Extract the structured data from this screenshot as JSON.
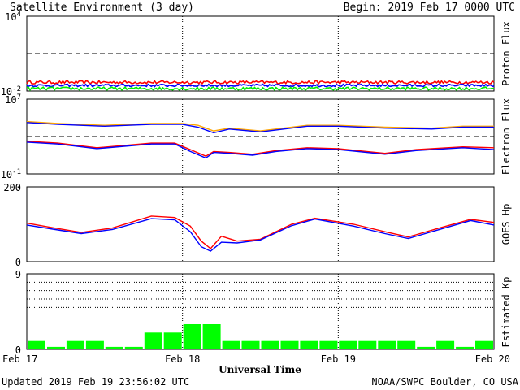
{
  "header": {
    "title": "Satellite Environment (3 day)",
    "begin": "Begin:  2019 Feb 17 0000 UTC"
  },
  "footer": {
    "updated": "Updated 2019 Feb 19 23:56:02 UTC",
    "credit": "NOAA/SWPC Boulder, CO USA",
    "xtitle": "Universal Time"
  },
  "x_axis": {
    "ticks": [
      {
        "day": 0,
        "label": "Feb 17"
      },
      {
        "day": 1,
        "label": "Feb 18"
      },
      {
        "day": 2,
        "label": "Feb 19"
      },
      {
        "day": 3,
        "label": "Feb 20"
      }
    ]
  },
  "colors": {
    "red": "#ff0000",
    "blue": "#0000ff",
    "green": "#00ee00",
    "orange": "#ffa500",
    "kp_bar": "#00ff00"
  },
  "chart_data": [
    {
      "type": "line",
      "panel": "proton",
      "ylabel": "Proton Flux",
      "yscale": "log",
      "ylim_exp": [
        -2,
        4
      ],
      "ytick_labels": [
        {
          "exp": 4,
          "base": "10",
          "sup": "4"
        },
        {
          "exp": -2,
          "base": "10",
          "sup": "-2"
        }
      ],
      "threshold_exp": 1,
      "series": [
        {
          "color": "red",
          "level_exp": -1.3,
          "noise": 0.12
        },
        {
          "color": "blue",
          "level_exp": -1.55,
          "noise": 0.1
        },
        {
          "color": "green",
          "level_exp": -1.8,
          "noise": 0.12
        }
      ]
    },
    {
      "type": "line",
      "panel": "electron",
      "ylabel": "Electron Flux",
      "yscale": "log",
      "ylim_exp": [
        -1,
        7
      ],
      "ytick_labels": [
        {
          "exp": 7,
          "base": "10",
          "sup": "7"
        },
        {
          "exp": -1,
          "base": "10",
          "sup": "-1"
        }
      ],
      "threshold_exp": 3,
      "series": [
        {
          "color": "orange",
          "x": [
            0,
            0.2,
            0.5,
            0.8,
            1.0,
            1.1,
            1.2,
            1.3,
            1.5,
            1.8,
            2.0,
            2.3,
            2.6,
            2.8,
            3.0
          ],
          "y": [
            4.6,
            4.4,
            4.2,
            4.4,
            4.4,
            4.2,
            3.6,
            3.9,
            3.6,
            4.2,
            4.2,
            4.0,
            3.9,
            4.1,
            4.1
          ]
        },
        {
          "color": "blue",
          "x": [
            0,
            0.2,
            0.5,
            0.8,
            1.0,
            1.1,
            1.2,
            1.3,
            1.5,
            1.8,
            2.0,
            2.3,
            2.6,
            2.8,
            3.0
          ],
          "y": [
            4.5,
            4.3,
            4.1,
            4.3,
            4.3,
            4.0,
            3.4,
            3.8,
            3.5,
            4.1,
            4.1,
            3.9,
            3.8,
            4.0,
            4.0
          ]
        },
        {
          "color": "red",
          "x": [
            0,
            0.2,
            0.45,
            0.8,
            0.95,
            1.05,
            1.15,
            1.2,
            1.3,
            1.45,
            1.6,
            1.8,
            2.0,
            2.3,
            2.5,
            2.8,
            3.0
          ],
          "y": [
            2.5,
            2.3,
            1.8,
            2.3,
            2.3,
            1.6,
            0.9,
            1.4,
            1.3,
            1.1,
            1.5,
            1.8,
            1.7,
            1.2,
            1.6,
            1.9,
            1.8
          ]
        },
        {
          "color": "blue",
          "x": [
            0,
            0.2,
            0.45,
            0.8,
            0.95,
            1.05,
            1.15,
            1.2,
            1.3,
            1.45,
            1.6,
            1.8,
            2.0,
            2.3,
            2.5,
            2.8,
            3.0
          ],
          "y": [
            2.4,
            2.2,
            1.7,
            2.2,
            2.2,
            1.4,
            0.7,
            1.3,
            1.2,
            1.0,
            1.4,
            1.7,
            1.6,
            1.1,
            1.5,
            1.8,
            1.6
          ]
        }
      ]
    },
    {
      "type": "line",
      "panel": "hp",
      "ylabel": "GOES Hp",
      "yscale": "linear",
      "ylim": [
        0,
        200
      ],
      "ytick_labels": [
        {
          "value": 200,
          "label": "200"
        },
        {
          "value": 0,
          "label": "0"
        }
      ],
      "series": [
        {
          "color": "red",
          "x": [
            0,
            0.15,
            0.35,
            0.55,
            0.8,
            0.95,
            1.05,
            1.12,
            1.18,
            1.25,
            1.35,
            1.5,
            1.7,
            1.85,
            2.1,
            2.3,
            2.45,
            2.65,
            2.85,
            3.0
          ],
          "y": [
            103,
            92,
            78,
            90,
            122,
            118,
            95,
            55,
            35,
            68,
            55,
            60,
            100,
            116,
            100,
            80,
            66,
            90,
            113,
            105
          ]
        },
        {
          "color": "blue",
          "x": [
            0,
            0.15,
            0.35,
            0.55,
            0.8,
            0.95,
            1.05,
            1.12,
            1.18,
            1.25,
            1.35,
            1.5,
            1.7,
            1.85,
            2.1,
            2.3,
            2.45,
            2.65,
            2.85,
            3.0
          ],
          "y": [
            98,
            88,
            75,
            86,
            115,
            112,
            80,
            40,
            28,
            52,
            50,
            58,
            96,
            114,
            95,
            75,
            62,
            86,
            110,
            98
          ]
        }
      ]
    },
    {
      "type": "bar",
      "panel": "kp",
      "ylabel": "Estimated Kp",
      "ylim": [
        0,
        9
      ],
      "ytick_labels": [
        {
          "value": 9,
          "label": "9"
        },
        {
          "value": 0,
          "label": "0"
        }
      ],
      "gridlines": [
        5,
        6,
        7,
        8,
        9
      ],
      "bar_width_hours": 3,
      "values": [
        1,
        0.3,
        1,
        1,
        0.3,
        0.3,
        2,
        2,
        3,
        3,
        1,
        1,
        1,
        1,
        1,
        1,
        1,
        1,
        1,
        1,
        0.3,
        1,
        0.3,
        1
      ]
    }
  ]
}
